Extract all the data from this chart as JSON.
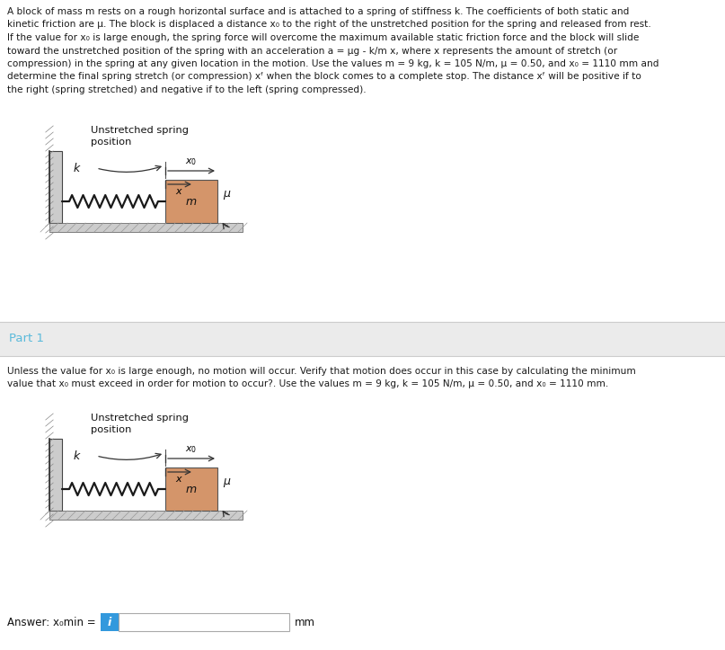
{
  "bg_color": "#ffffff",
  "fig_width": 8.07,
  "fig_height": 7.23,
  "top_text_lines": [
    "A block of mass m rests on a rough horizontal surface and is attached to a spring of stiffness k. The coefficients of both static and",
    "kinetic friction are μ. The block is displaced a distance x₀ to the right of the unstretched position for the spring and released from rest.",
    "If the value for x₀ is large enough, the spring force will overcome the maximum available static friction force and the block will slide",
    "toward the unstretched position of the spring with an acceleration a = μg - k/m x, where x represents the amount of stretch (or",
    "compression) in the spring at any given location in the motion. Use the values m = 9 kg, k = 105 N/m, μ = 0.50, and x₀ = 1110 mm and",
    "determine the final spring stretch (or compression) xᶠ when the block comes to a complete stop. The distance xᶠ will be positive if to",
    "the right (spring stretched) and negative if to the left (spring compressed)."
  ],
  "part1_label": "Part 1",
  "part1_text_lines": [
    "Unless the value for x₀ is large enough, no motion will occur. Verify that motion does occur in this case by calculating the minimum",
    "value that x₀ must exceed in order for motion to occur?. Use the values m = 9 kg, k = 105 N/m, μ = 0.50, and x₀ = 1110 mm."
  ],
  "answer_label": "Answer: x₀min =",
  "answer_unit": "mm",
  "spring_color": "#1a1a1a",
  "block_color": "#d4956a",
  "wall_color": "#d0d0d0",
  "floor_color": "#d0d0d0",
  "part1_bg": "#f0f0f0",
  "part1_text_color": "#5abadb",
  "answer_box_color": "#3399dd",
  "diagram1_label": "Unstretched spring\nposition",
  "diagram2_label": "Unstretched spring\nposition"
}
